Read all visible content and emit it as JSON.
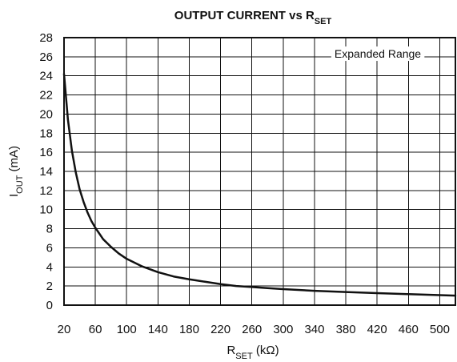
{
  "chart_data": {
    "type": "line",
    "title": {
      "main": "OUTPUT CURRENT vs R",
      "sub": "SET"
    },
    "xlabel": {
      "main": "R",
      "sub": "SET",
      "suffix": " (kΩ)"
    },
    "ylabel": {
      "main": "I",
      "sub": "OUT",
      "suffix": " (mA)"
    },
    "annotation": "Expanded Range",
    "xlim": [
      20,
      520
    ],
    "ylim": [
      0,
      28
    ],
    "xticks": [
      20,
      60,
      100,
      140,
      180,
      220,
      260,
      300,
      340,
      380,
      420,
      460,
      500
    ],
    "yticks": [
      0,
      2,
      4,
      6,
      8,
      10,
      12,
      14,
      16,
      18,
      20,
      22,
      24,
      26,
      28
    ],
    "grid": true,
    "series": [
      {
        "x": [
          20,
          25,
          30,
          35,
          40,
          45,
          50,
          55,
          60,
          70,
          80,
          90,
          100,
          120,
          140,
          160,
          180,
          200,
          220,
          240,
          260,
          280,
          300,
          340,
          380,
          420,
          460,
          500,
          520
        ],
        "values": [
          24.2,
          19.4,
          16.2,
          13.9,
          12.1,
          10.8,
          9.7,
          8.8,
          8.1,
          6.9,
          6.1,
          5.4,
          4.85,
          4.05,
          3.45,
          3.0,
          2.7,
          2.45,
          2.2,
          2.0,
          1.9,
          1.78,
          1.68,
          1.5,
          1.37,
          1.26,
          1.15,
          1.05,
          1.0
        ]
      }
    ]
  },
  "style": {
    "line_color": "#111111",
    "grid_color": "#111111",
    "background": "#ffffff"
  }
}
